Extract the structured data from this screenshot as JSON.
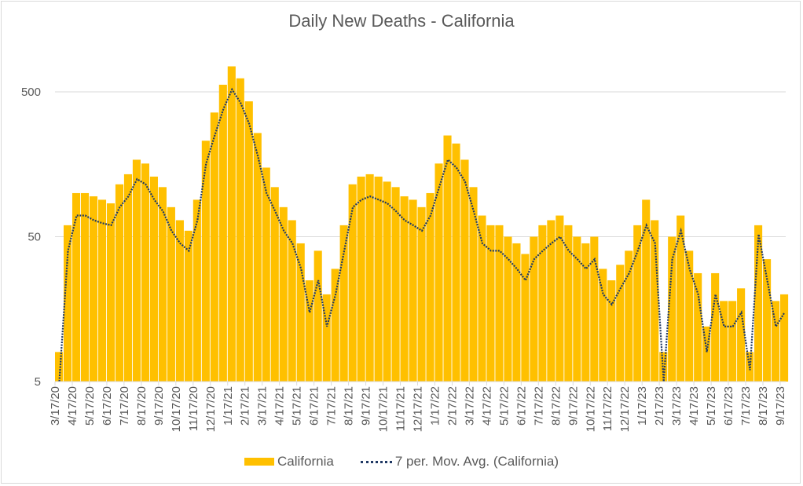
{
  "chart_data": {
    "type": "bar",
    "title": "Daily New Deaths - California",
    "xlabel": "",
    "ylabel": "",
    "yscale": "log",
    "ylim": [
      5,
      1000
    ],
    "y_ticks": [
      "5",
      "50",
      "500"
    ],
    "y_tick_values": [
      5,
      50,
      500
    ],
    "x_tick_labels": [
      "3/17/20",
      "4/17/20",
      "5/17/20",
      "6/17/20",
      "7/17/20",
      "8/17/20",
      "9/17/20",
      "10/17/20",
      "11/17/20",
      "12/17/20",
      "1/17/21",
      "2/17/21",
      "3/17/21",
      "4/17/21",
      "5/17/21",
      "6/17/21",
      "7/17/21",
      "8/17/21",
      "9/17/21",
      "10/17/21",
      "11/17/21",
      "12/17/21",
      "1/17/22",
      "2/17/22",
      "3/17/22",
      "4/17/22",
      "5/17/22",
      "6/17/22",
      "7/17/22",
      "8/17/22",
      "9/17/22",
      "10/17/22",
      "11/17/22",
      "12/17/22",
      "1/17/23",
      "2/17/23",
      "3/17/23",
      "4/17/23",
      "5/17/23",
      "6/17/23",
      "7/17/23",
      "8/17/23",
      "9/17/23"
    ],
    "x_sampling": "semi-monthly from 3/17/20 (approximate readings)",
    "grid": true,
    "legend_position": "bottom",
    "series": [
      {
        "name": "California",
        "type": "bar",
        "color": "#FFC000",
        "values": [
          8,
          60,
          100,
          100,
          95,
          90,
          85,
          115,
          135,
          170,
          160,
          130,
          110,
          80,
          65,
          55,
          90,
          230,
          360,
          560,
          750,
          620,
          430,
          260,
          150,
          110,
          80,
          65,
          45,
          25,
          40,
          20,
          30,
          60,
          115,
          130,
          135,
          130,
          120,
          110,
          95,
          90,
          80,
          100,
          160,
          250,
          220,
          170,
          110,
          70,
          60,
          60,
          50,
          45,
          38,
          50,
          60,
          65,
          70,
          60,
          50,
          45,
          50,
          30,
          25,
          32,
          40,
          60,
          90,
          65,
          8,
          50,
          70,
          40,
          28,
          12,
          28,
          18,
          18,
          22,
          8,
          60,
          35,
          18,
          20
        ]
      },
      {
        "name": "7 per. Mov. Avg. (California)",
        "type": "line",
        "style": "dotted",
        "color": "#1F3864",
        "values": [
          5,
          40,
          70,
          70,
          65,
          62,
          60,
          80,
          95,
          125,
          115,
          90,
          75,
          55,
          45,
          40,
          65,
          160,
          250,
          380,
          520,
          420,
          300,
          180,
          100,
          75,
          55,
          45,
          30,
          15,
          25,
          12,
          20,
          40,
          80,
          90,
          95,
          90,
          85,
          75,
          65,
          60,
          55,
          70,
          110,
          170,
          150,
          120,
          75,
          45,
          40,
          40,
          35,
          30,
          25,
          35,
          40,
          45,
          50,
          40,
          35,
          30,
          35,
          20,
          17,
          22,
          28,
          40,
          60,
          45,
          5,
          35,
          55,
          30,
          20,
          8,
          20,
          12,
          12,
          15,
          6,
          52,
          25,
          12,
          15
        ]
      }
    ]
  }
}
